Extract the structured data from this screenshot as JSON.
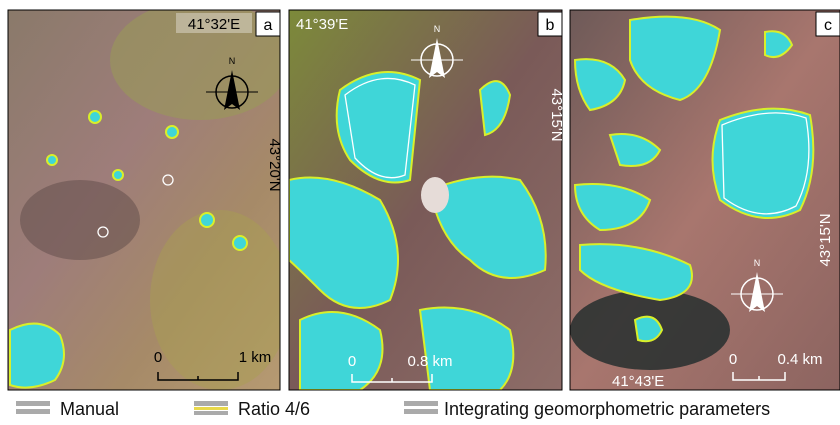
{
  "panels": [
    {
      "label": "a",
      "lon": "41°32'E",
      "lat": "43°20'N",
      "north": "N",
      "scale": {
        "start": "0",
        "end": "1 km"
      }
    },
    {
      "label": "b",
      "lon": "41°39'E",
      "lat": "43°15'N",
      "north": "N",
      "scale": {
        "start": "0",
        "end": "0.8 km"
      }
    },
    {
      "label": "c",
      "lon": "41°43'E",
      "lat": "43°15'N",
      "north": "N",
      "scale": {
        "start": "0",
        "end": "0.4 km"
      }
    }
  ],
  "legend": [
    {
      "label": "Manual"
    },
    {
      "label": "Ratio 4/6"
    },
    {
      "label": "Integrating geomorphometric parameters"
    }
  ]
}
